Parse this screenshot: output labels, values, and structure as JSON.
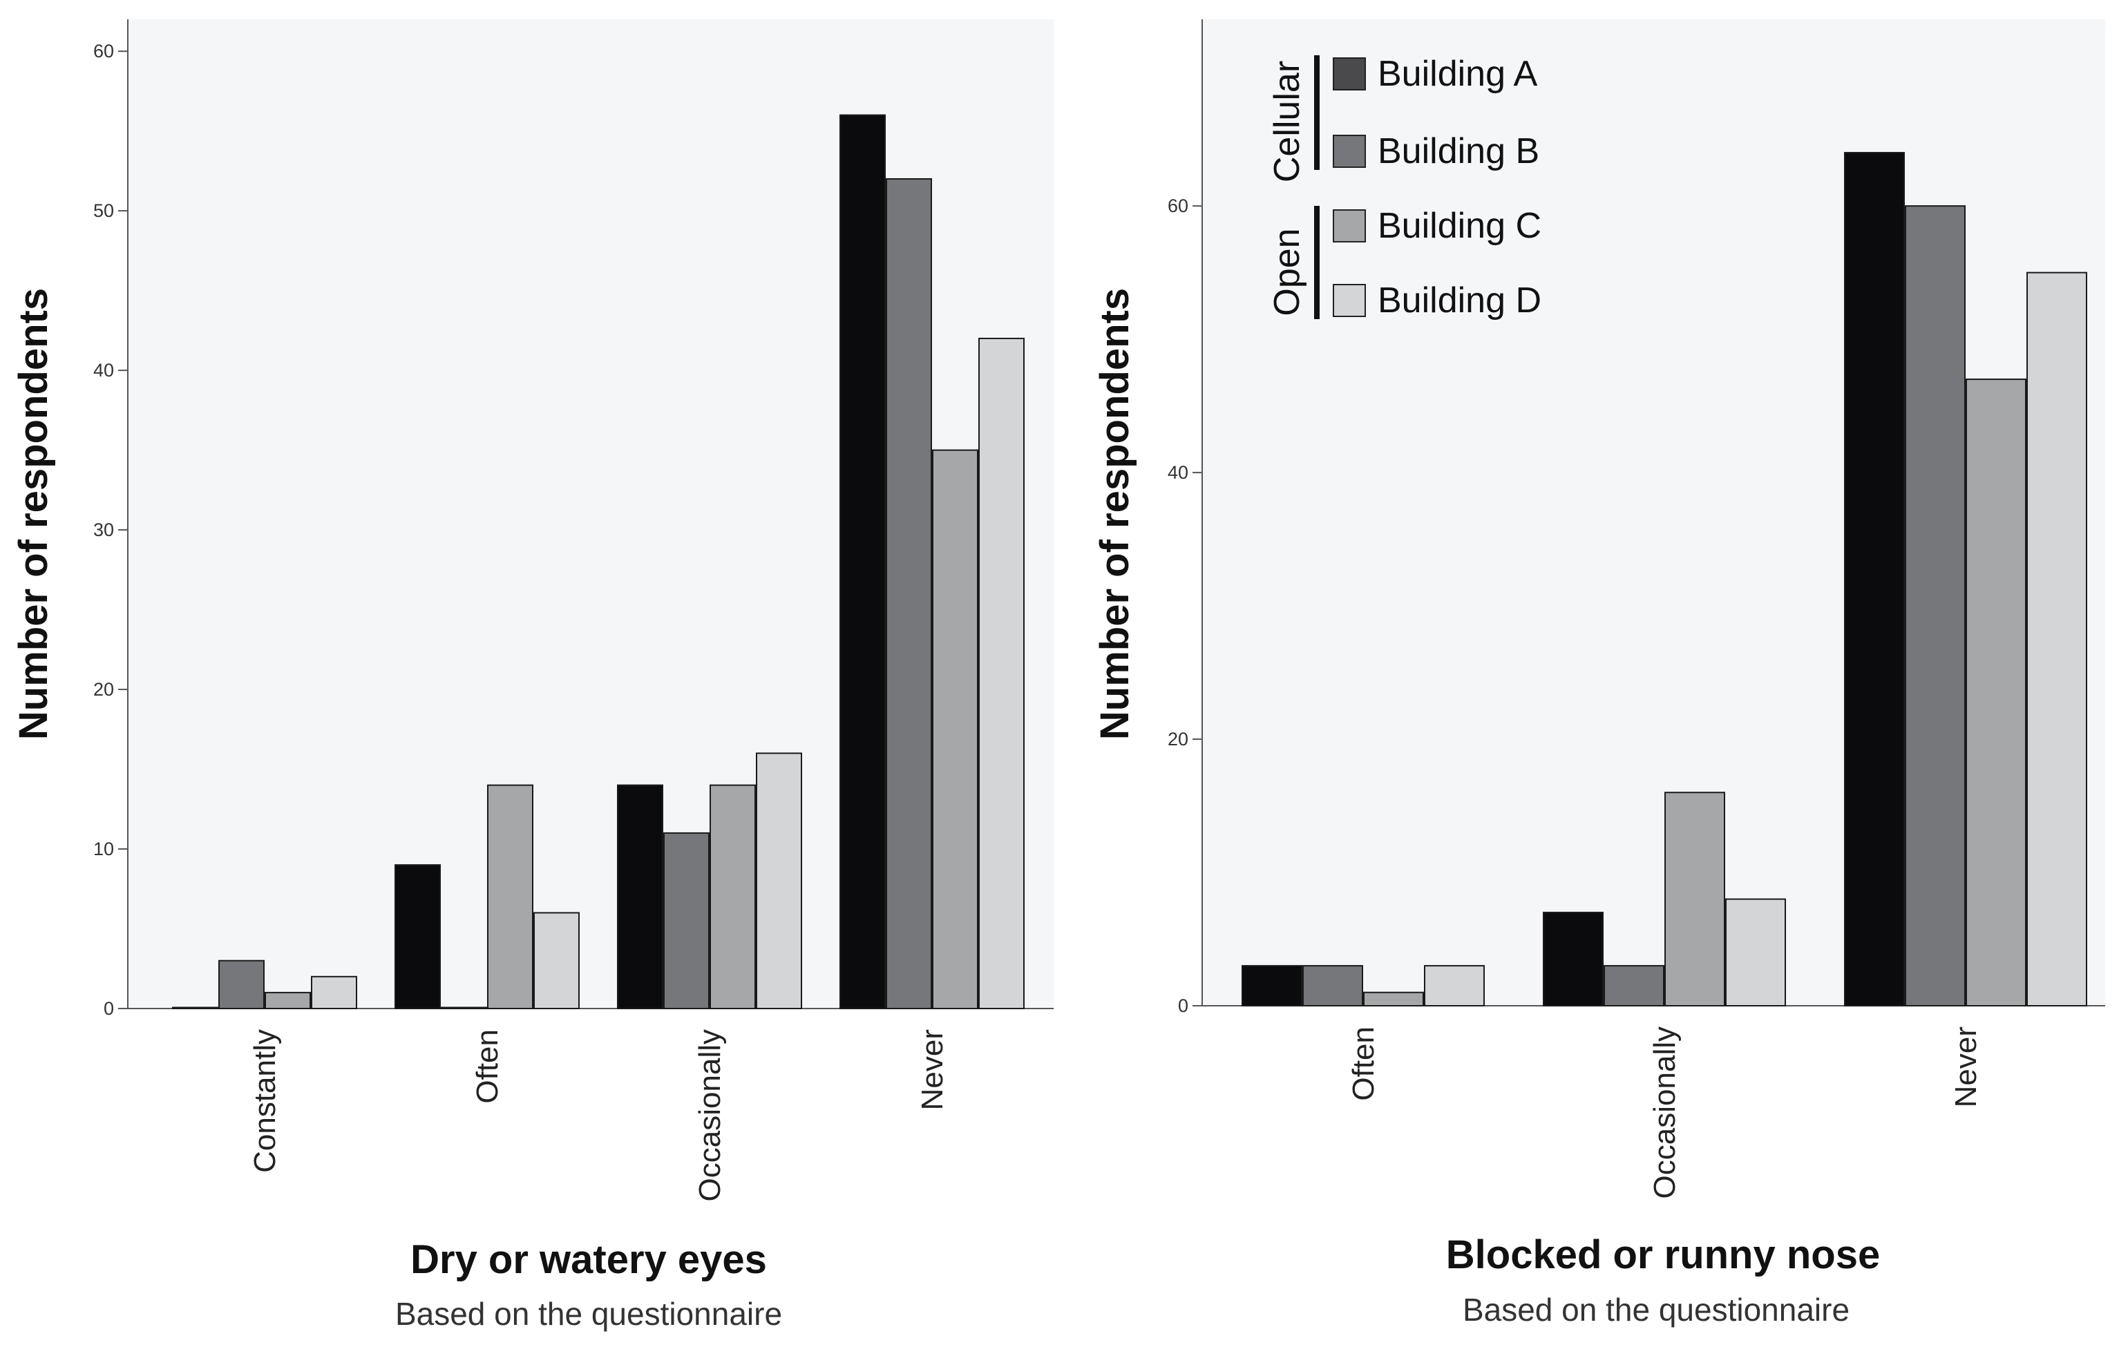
{
  "chart_data": [
    {
      "type": "bar",
      "title": "Dry or watery eyes",
      "subtitle": "Based on the questionnaire",
      "ylabel": "Number of respondents",
      "xlabel": "",
      "categories": [
        "Constantly",
        "Often",
        "Occasionally",
        "Never"
      ],
      "series": [
        {
          "name": "Building A",
          "values": [
            0,
            9,
            14,
            56
          ]
        },
        {
          "name": "Building B",
          "values": [
            3,
            0,
            11,
            52
          ]
        },
        {
          "name": "Building C",
          "values": [
            1,
            14,
            14,
            35
          ]
        },
        {
          "name": "Building D",
          "values": [
            2,
            6,
            16,
            42
          ]
        }
      ],
      "ylim": [
        0,
        62
      ],
      "yticks": [
        0,
        10,
        20,
        30,
        40,
        50,
        60
      ],
      "grid": false
    },
    {
      "type": "bar",
      "title": "Blocked or runny nose",
      "subtitle": "Based on the questionnaire",
      "ylabel": "Number of respondents",
      "xlabel": "",
      "categories": [
        "Often",
        "Occasionally",
        "Never"
      ],
      "series": [
        {
          "name": "Building A",
          "values": [
            3,
            7,
            64
          ]
        },
        {
          "name": "Building B",
          "values": [
            3,
            3,
            60
          ]
        },
        {
          "name": "Building C",
          "values": [
            1,
            16,
            47
          ]
        },
        {
          "name": "Building D",
          "values": [
            3,
            8,
            55
          ]
        }
      ],
      "ylim": [
        0,
        74
      ],
      "yticks": [
        0,
        20,
        40,
        60
      ],
      "grid": false
    }
  ],
  "legend": {
    "placement": "top-left of right chart",
    "groups": [
      {
        "label": "Cellular",
        "items": [
          "Building A",
          "Building B"
        ]
      },
      {
        "label": "Open",
        "items": [
          "Building C",
          "Building D"
        ]
      }
    ]
  },
  "colors": {
    "Building A": "#0b0b0d",
    "Building B": "#75777a",
    "Building C": "#a6a7a8",
    "Building D": "#d4d5d7",
    "legend_A": "#4a4a4c",
    "plot_bg": "#f5f6f8",
    "axis": "#555555"
  }
}
